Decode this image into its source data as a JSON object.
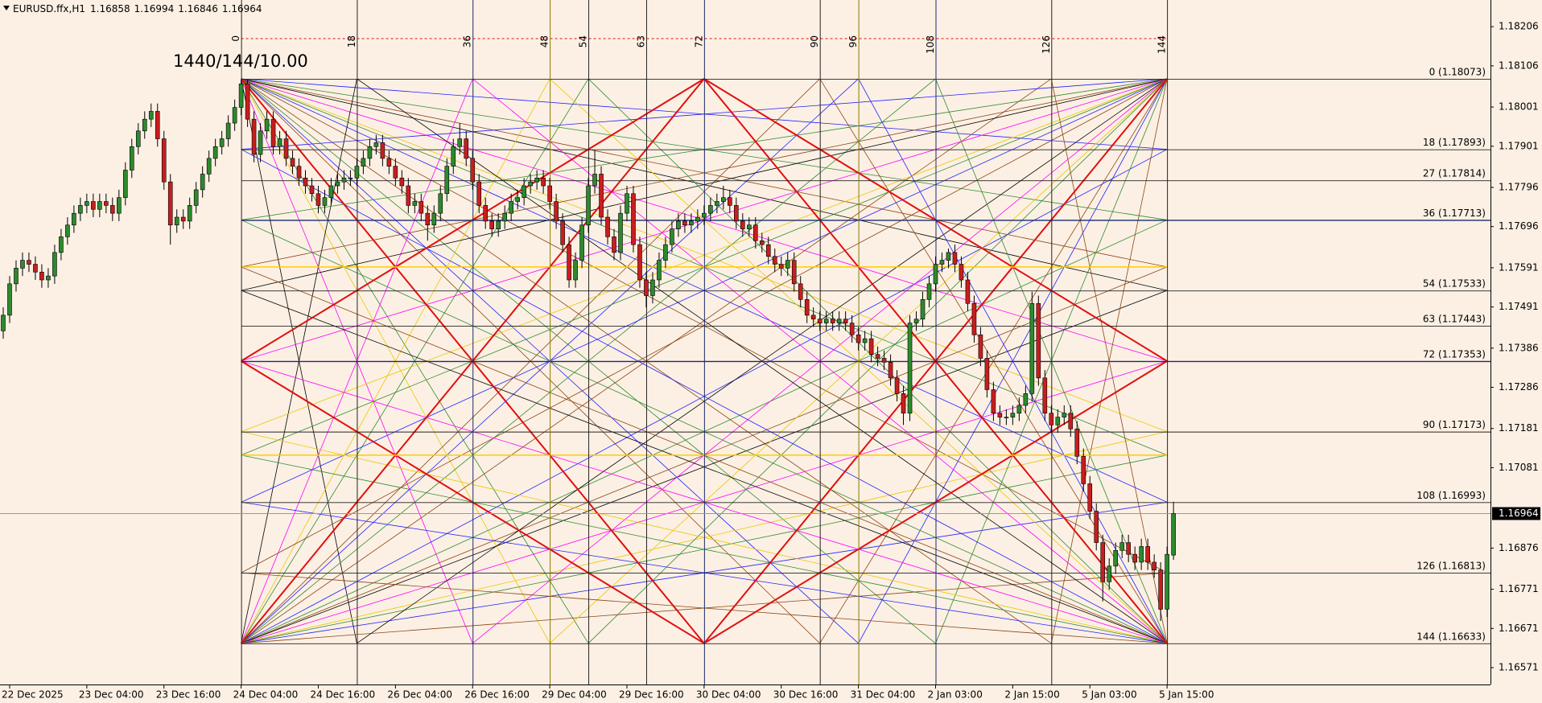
{
  "chart_data": {
    "type": "candlestick",
    "title": "EURUSD.ffx,H1",
    "annotation": "1440/144/10.00",
    "colors": {
      "up": "#2d8a2d",
      "down": "#c81e1e",
      "wick": "#000000",
      "background": "#fcf0e4"
    },
    "xlim": [
      -37.5,
      194.3
    ],
    "xticks": [
      {
        "value": -36,
        "label": "22 Dec 2025"
      },
      {
        "value": -24,
        "label": "23 Dec 04:00"
      },
      {
        "value": -12,
        "label": "23 Dec 16:00"
      },
      {
        "value": 0,
        "label": "24 Dec 04:00"
      },
      {
        "value": 12,
        "label": "24 Dec 16:00"
      },
      {
        "value": 24,
        "label": "26 Dec 04:00"
      },
      {
        "value": 36,
        "label": "26 Dec 16:00"
      },
      {
        "value": 48,
        "label": "29 Dec 04:00"
      },
      {
        "value": 60,
        "label": "29 Dec 16:00"
      },
      {
        "value": 72,
        "label": "30 Dec 04:00"
      },
      {
        "value": 84,
        "label": "30 Dec 16:00"
      },
      {
        "value": 96,
        "label": "31 Dec 04:00"
      },
      {
        "value": 108,
        "label": "2 Jan 03:00"
      },
      {
        "value": 120,
        "label": "2 Jan 15:00"
      },
      {
        "value": 132,
        "label": "5 Jan 03:00"
      },
      {
        "value": 144,
        "label": "5 Jan 15:00"
      }
    ],
    "ylim": [
      1.16528,
      1.18274
    ],
    "yticks": [
      1.18206,
      1.18106,
      1.18001,
      1.17901,
      1.17796,
      1.17696,
      1.17591,
      1.17491,
      1.17386,
      1.17286,
      1.17181,
      1.17081,
      1.16876,
      1.16771,
      1.16671,
      1.16571
    ],
    "bar_marks": [
      0,
      18,
      36,
      48,
      54,
      63,
      72,
      90,
      96,
      108,
      126,
      144
    ],
    "levels": [
      {
        "value": 1.18073,
        "label": "0 (1.18073)"
      },
      {
        "value": 1.17893,
        "label": "18 (1.17893)"
      },
      {
        "value": 1.17814,
        "label": "27 (1.17814)"
      },
      {
        "value": 1.17713,
        "label": "36 (1.17713)"
      },
      {
        "value": 1.17533,
        "label": "54 (1.17533)"
      },
      {
        "value": 1.17443,
        "label": "63 (1.17443)"
      },
      {
        "value": 1.17353,
        "label": "72 (1.17353)"
      },
      {
        "value": 1.17173,
        "label": "90 (1.17173)"
      },
      {
        "value": 1.16993,
        "label": "108 (1.16993)"
      },
      {
        "value": 1.16813,
        "label": "126 (1.16813)"
      },
      {
        "value": 1.16633,
        "label": "144 (1.16633)"
      }
    ],
    "x": [
      -37,
      -36,
      -35,
      -34,
      -33,
      -32,
      -31,
      -30,
      -29,
      -28,
      -27,
      -26,
      -25,
      -24,
      -23,
      -22,
      -21,
      -20,
      -19,
      -18,
      -17,
      -16,
      -15,
      -14,
      -13,
      -12,
      -11,
      -10,
      -9,
      -8,
      -7,
      -6,
      -5,
      -4,
      -3,
      -2,
      -1,
      0,
      1,
      2,
      3,
      4,
      5,
      6,
      7,
      8,
      9,
      10,
      11,
      12,
      13,
      14,
      15,
      16,
      17,
      18,
      19,
      20,
      21,
      22,
      23,
      24,
      25,
      26,
      27,
      28,
      29,
      30,
      31,
      32,
      33,
      34,
      35,
      36,
      37,
      38,
      39,
      40,
      41,
      42,
      43,
      44,
      45,
      46,
      47,
      48,
      49,
      50,
      51,
      52,
      53,
      54,
      55,
      56,
      57,
      58,
      59,
      60,
      61,
      62,
      63,
      64,
      65,
      66,
      67,
      68,
      69,
      70,
      71,
      72,
      73,
      74,
      75,
      76,
      77,
      78,
      79,
      80,
      81,
      82,
      83,
      84,
      85,
      86,
      87,
      88,
      89,
      90,
      91,
      92,
      93,
      94,
      95,
      96,
      97,
      98,
      99,
      100,
      101,
      102,
      103,
      104,
      105,
      106,
      107,
      108,
      109,
      110,
      111,
      112,
      113,
      114,
      115,
      116,
      117,
      118,
      119,
      120,
      121,
      122,
      123,
      124,
      125,
      126,
      127,
      128,
      129,
      130,
      131,
      132,
      133,
      134,
      135,
      136,
      137,
      138,
      139,
      140,
      141,
      142,
      143,
      144,
      145
    ],
    "ohlc": [
      [
        1.1743,
        1.1749,
        1.1741,
        1.1747
      ],
      [
        1.1747,
        1.1757,
        1.1745,
        1.1755
      ],
      [
        1.1755,
        1.1761,
        1.1753,
        1.1759
      ],
      [
        1.1759,
        1.1763,
        1.1757,
        1.1761
      ],
      [
        1.1761,
        1.1763,
        1.1758,
        1.176
      ],
      [
        1.176,
        1.1762,
        1.1756,
        1.1758
      ],
      [
        1.1758,
        1.176,
        1.1754,
        1.1756
      ],
      [
        1.1756,
        1.1759,
        1.1754,
        1.1757
      ],
      [
        1.1757,
        1.1765,
        1.1755,
        1.1763
      ],
      [
        1.1763,
        1.1769,
        1.1761,
        1.1767
      ],
      [
        1.1767,
        1.1772,
        1.1765,
        1.177
      ],
      [
        1.177,
        1.1775,
        1.1768,
        1.1773
      ],
      [
        1.1773,
        1.1777,
        1.1771,
        1.1775
      ],
      [
        1.1775,
        1.1778,
        1.1773,
        1.1776
      ],
      [
        1.1776,
        1.1778,
        1.1772,
        1.1774
      ],
      [
        1.1774,
        1.1778,
        1.1772,
        1.1776
      ],
      [
        1.1776,
        1.1778,
        1.1773,
        1.1775
      ],
      [
        1.1775,
        1.1777,
        1.1771,
        1.1773
      ],
      [
        1.1773,
        1.1779,
        1.1771,
        1.1777
      ],
      [
        1.1777,
        1.1786,
        1.1775,
        1.1784
      ],
      [
        1.1784,
        1.1792,
        1.1782,
        1.179
      ],
      [
        1.179,
        1.1796,
        1.1788,
        1.1794
      ],
      [
        1.1794,
        1.1799,
        1.1792,
        1.1797
      ],
      [
        1.1797,
        1.1801,
        1.1795,
        1.1799
      ],
      [
        1.1799,
        1.1801,
        1.179,
        1.1792
      ],
      [
        1.1792,
        1.1794,
        1.1779,
        1.1781
      ],
      [
        1.1781,
        1.1783,
        1.1765,
        1.177
      ],
      [
        1.177,
        1.1774,
        1.1768,
        1.1772
      ],
      [
        1.1772,
        1.1774,
        1.1769,
        1.1771
      ],
      [
        1.1771,
        1.1777,
        1.1769,
        1.1775
      ],
      [
        1.1775,
        1.1781,
        1.1773,
        1.1779
      ],
      [
        1.1779,
        1.1785,
        1.1777,
        1.1783
      ],
      [
        1.1783,
        1.1789,
        1.1781,
        1.1787
      ],
      [
        1.1787,
        1.1792,
        1.1785,
        1.179
      ],
      [
        1.179,
        1.1794,
        1.1788,
        1.1792
      ],
      [
        1.1792,
        1.1798,
        1.179,
        1.1796
      ],
      [
        1.1796,
        1.1802,
        1.1794,
        1.18
      ],
      [
        1.18,
        1.1807,
        1.1798,
        1.1806
      ],
      [
        1.1806,
        1.1807,
        1.1795,
        1.1797
      ],
      [
        1.1797,
        1.1799,
        1.1786,
        1.1788
      ],
      [
        1.1788,
        1.1796,
        1.1786,
        1.1794
      ],
      [
        1.1794,
        1.1799,
        1.1792,
        1.1797
      ],
      [
        1.1797,
        1.1799,
        1.1788,
        1.179
      ],
      [
        1.179,
        1.1794,
        1.1788,
        1.1792
      ],
      [
        1.1792,
        1.1794,
        1.1785,
        1.1787
      ],
      [
        1.1787,
        1.1789,
        1.1783,
        1.1785
      ],
      [
        1.1785,
        1.1787,
        1.178,
        1.1782
      ],
      [
        1.1782,
        1.1784,
        1.1778,
        1.178
      ],
      [
        1.178,
        1.1782,
        1.1776,
        1.1778
      ],
      [
        1.1778,
        1.178,
        1.1773,
        1.1775
      ],
      [
        1.1775,
        1.1779,
        1.1773,
        1.1777
      ],
      [
        1.1777,
        1.1782,
        1.1775,
        1.178
      ],
      [
        1.178,
        1.1783,
        1.1778,
        1.1781
      ],
      [
        1.1781,
        1.1784,
        1.1779,
        1.1782
      ],
      [
        1.1782,
        1.1784,
        1.178,
        1.1782
      ],
      [
        1.1782,
        1.1787,
        1.178,
        1.1785
      ],
      [
        1.1785,
        1.1789,
        1.1783,
        1.1787
      ],
      [
        1.1787,
        1.1792,
        1.1785,
        1.179
      ],
      [
        1.179,
        1.1793,
        1.1788,
        1.1791
      ],
      [
        1.1791,
        1.1793,
        1.1785,
        1.1787
      ],
      [
        1.1787,
        1.1789,
        1.1783,
        1.1785
      ],
      [
        1.1785,
        1.1787,
        1.178,
        1.1782
      ],
      [
        1.1782,
        1.1784,
        1.1778,
        1.178
      ],
      [
        1.178,
        1.1782,
        1.1773,
        1.1775
      ],
      [
        1.1775,
        1.1778,
        1.1773,
        1.1776
      ],
      [
        1.1776,
        1.1778,
        1.1771,
        1.1773
      ],
      [
        1.1773,
        1.1775,
        1.1766,
        1.177
      ],
      [
        1.177,
        1.1775,
        1.1768,
        1.1773
      ],
      [
        1.1773,
        1.178,
        1.1771,
        1.1778
      ],
      [
        1.1778,
        1.1787,
        1.1776,
        1.1785
      ],
      [
        1.1785,
        1.1792,
        1.1783,
        1.179
      ],
      [
        1.179,
        1.1796,
        1.1788,
        1.1792
      ],
      [
        1.1792,
        1.1794,
        1.1785,
        1.1787
      ],
      [
        1.1787,
        1.1789,
        1.1779,
        1.1781
      ],
      [
        1.1781,
        1.1783,
        1.1773,
        1.1775
      ],
      [
        1.1775,
        1.1777,
        1.1769,
        1.1771
      ],
      [
        1.1771,
        1.1773,
        1.1767,
        1.1769
      ],
      [
        1.1769,
        1.1773,
        1.1767,
        1.1771
      ],
      [
        1.1771,
        1.1775,
        1.1769,
        1.1773
      ],
      [
        1.1773,
        1.1778,
        1.1771,
        1.1776
      ],
      [
        1.1776,
        1.1779,
        1.1774,
        1.1777
      ],
      [
        1.1777,
        1.1782,
        1.1775,
        1.178
      ],
      [
        1.178,
        1.1783,
        1.1778,
        1.1781
      ],
      [
        1.1781,
        1.1784,
        1.1779,
        1.1782
      ],
      [
        1.1782,
        1.1784,
        1.1778,
        1.178
      ],
      [
        1.178,
        1.1782,
        1.1774,
        1.1776
      ],
      [
        1.1776,
        1.1778,
        1.1769,
        1.1771
      ],
      [
        1.1771,
        1.1773,
        1.1763,
        1.1765
      ],
      [
        1.1765,
        1.1767,
        1.1754,
        1.1756
      ],
      [
        1.1756,
        1.1763,
        1.1754,
        1.1761
      ],
      [
        1.1761,
        1.1772,
        1.1759,
        1.177
      ],
      [
        1.177,
        1.1782,
        1.1768,
        1.178
      ],
      [
        1.178,
        1.1789,
        1.1778,
        1.1783
      ],
      [
        1.1783,
        1.1785,
        1.177,
        1.1772
      ],
      [
        1.1772,
        1.1774,
        1.1765,
        1.1767
      ],
      [
        1.1767,
        1.1769,
        1.1761,
        1.1763
      ],
      [
        1.1763,
        1.1775,
        1.1761,
        1.1773
      ],
      [
        1.1773,
        1.178,
        1.1771,
        1.1778
      ],
      [
        1.1778,
        1.178,
        1.1763,
        1.1765
      ],
      [
        1.1765,
        1.1767,
        1.1754,
        1.1756
      ],
      [
        1.1756,
        1.1758,
        1.1749,
        1.1752
      ],
      [
        1.1752,
        1.1758,
        1.175,
        1.1756
      ],
      [
        1.1756,
        1.1763,
        1.1754,
        1.1761
      ],
      [
        1.1761,
        1.1767,
        1.1759,
        1.1765
      ],
      [
        1.1765,
        1.1771,
        1.1763,
        1.1769
      ],
      [
        1.1769,
        1.1773,
        1.1767,
        1.1771
      ],
      [
        1.1771,
        1.1773,
        1.1768,
        1.177
      ],
      [
        1.177,
        1.1773,
        1.1768,
        1.1771
      ],
      [
        1.1771,
        1.1774,
        1.1769,
        1.1772
      ],
      [
        1.1772,
        1.1775,
        1.177,
        1.1773
      ],
      [
        1.1773,
        1.1777,
        1.1771,
        1.1775
      ],
      [
        1.1775,
        1.1778,
        1.1773,
        1.1776
      ],
      [
        1.1776,
        1.178,
        1.1774,
        1.1777
      ],
      [
        1.1777,
        1.1779,
        1.1773,
        1.1775
      ],
      [
        1.1775,
        1.1777,
        1.1769,
        1.1771
      ],
      [
        1.1771,
        1.1773,
        1.1767,
        1.1769
      ],
      [
        1.1769,
        1.1772,
        1.1767,
        1.177
      ],
      [
        1.177,
        1.1772,
        1.1764,
        1.1766
      ],
      [
        1.1766,
        1.1768,
        1.1763,
        1.1765
      ],
      [
        1.1765,
        1.1767,
        1.176,
        1.1762
      ],
      [
        1.1762,
        1.1764,
        1.1758,
        1.176
      ],
      [
        1.176,
        1.1762,
        1.1757,
        1.1759
      ],
      [
        1.1759,
        1.1763,
        1.1757,
        1.1761
      ],
      [
        1.1761,
        1.1763,
        1.1753,
        1.1755
      ],
      [
        1.1755,
        1.1757,
        1.1749,
        1.1751
      ],
      [
        1.1751,
        1.1753,
        1.1745,
        1.1747
      ],
      [
        1.1747,
        1.1749,
        1.1744,
        1.1746
      ],
      [
        1.1746,
        1.1748,
        1.1743,
        1.1745
      ],
      [
        1.1745,
        1.1748,
        1.1743,
        1.1746
      ],
      [
        1.1746,
        1.1748,
        1.1743,
        1.1745
      ],
      [
        1.1745,
        1.1748,
        1.1743,
        1.1746
      ],
      [
        1.1746,
        1.1748,
        1.1743,
        1.1745
      ],
      [
        1.1745,
        1.1747,
        1.174,
        1.1742
      ],
      [
        1.1742,
        1.1744,
        1.1738,
        1.174
      ],
      [
        1.174,
        1.1743,
        1.1738,
        1.1741
      ],
      [
        1.1741,
        1.1743,
        1.1735,
        1.1737
      ],
      [
        1.1737,
        1.1739,
        1.1734,
        1.1736
      ],
      [
        1.1736,
        1.1738,
        1.1733,
        1.1735
      ],
      [
        1.1735,
        1.1737,
        1.1729,
        1.1731
      ],
      [
        1.1731,
        1.1733,
        1.1725,
        1.1727
      ],
      [
        1.1727,
        1.1729,
        1.1719,
        1.1722
      ],
      [
        1.1722,
        1.1747,
        1.172,
        1.1745
      ],
      [
        1.1745,
        1.1748,
        1.1743,
        1.1746
      ],
      [
        1.1746,
        1.1753,
        1.1744,
        1.1751
      ],
      [
        1.1751,
        1.1757,
        1.1749,
        1.1755
      ],
      [
        1.1755,
        1.1762,
        1.1753,
        1.176
      ],
      [
        1.176,
        1.1763,
        1.1758,
        1.1761
      ],
      [
        1.1761,
        1.1764,
        1.1759,
        1.1763
      ],
      [
        1.1763,
        1.1765,
        1.1758,
        1.176
      ],
      [
        1.176,
        1.1762,
        1.1754,
        1.1756
      ],
      [
        1.1756,
        1.1758,
        1.1748,
        1.175
      ],
      [
        1.175,
        1.1752,
        1.174,
        1.1742
      ],
      [
        1.1742,
        1.1744,
        1.1734,
        1.1736
      ],
      [
        1.1736,
        1.1738,
        1.1726,
        1.1728
      ],
      [
        1.1728,
        1.173,
        1.172,
        1.1722
      ],
      [
        1.1722,
        1.1724,
        1.1719,
        1.1721
      ],
      [
        1.1721,
        1.1723,
        1.1719,
        1.1721
      ],
      [
        1.1721,
        1.1724,
        1.1719,
        1.1722
      ],
      [
        1.1722,
        1.1726,
        1.172,
        1.1724
      ],
      [
        1.1724,
        1.1729,
        1.1722,
        1.1727
      ],
      [
        1.1727,
        1.1753,
        1.1725,
        1.175
      ],
      [
        1.175,
        1.1752,
        1.1729,
        1.1731
      ],
      [
        1.1731,
        1.1733,
        1.172,
        1.1722
      ],
      [
        1.1722,
        1.1724,
        1.1717,
        1.1719
      ],
      [
        1.1719,
        1.1723,
        1.1717,
        1.1721
      ],
      [
        1.1721,
        1.1724,
        1.1719,
        1.1722
      ],
      [
        1.1722,
        1.1724,
        1.1716,
        1.1718
      ],
      [
        1.1718,
        1.172,
        1.1709,
        1.1711
      ],
      [
        1.1711,
        1.1713,
        1.1702,
        1.1704
      ],
      [
        1.1704,
        1.1706,
        1.1695,
        1.1697
      ],
      [
        1.1697,
        1.1699,
        1.1687,
        1.1689
      ],
      [
        1.1689,
        1.1691,
        1.1674,
        1.1679
      ],
      [
        1.1679,
        1.1685,
        1.1677,
        1.1683
      ],
      [
        1.1683,
        1.1689,
        1.1681,
        1.1687
      ],
      [
        1.1687,
        1.1691,
        1.1685,
        1.1689
      ],
      [
        1.1689,
        1.1691,
        1.1684,
        1.1686
      ],
      [
        1.1686,
        1.1688,
        1.1682,
        1.1684
      ],
      [
        1.1684,
        1.169,
        1.1682,
        1.1688
      ],
      [
        1.1688,
        1.169,
        1.1682,
        1.1684
      ],
      [
        1.1684,
        1.1686,
        1.168,
        1.1682
      ],
      [
        1.1682,
        1.1684,
        1.1669,
        1.1672
      ],
      [
        1.1672,
        1.1688,
        1.167,
        1.1686
      ],
      [
        1.16858,
        1.16994,
        1.16846,
        1.16964
      ]
    ]
  }
}
